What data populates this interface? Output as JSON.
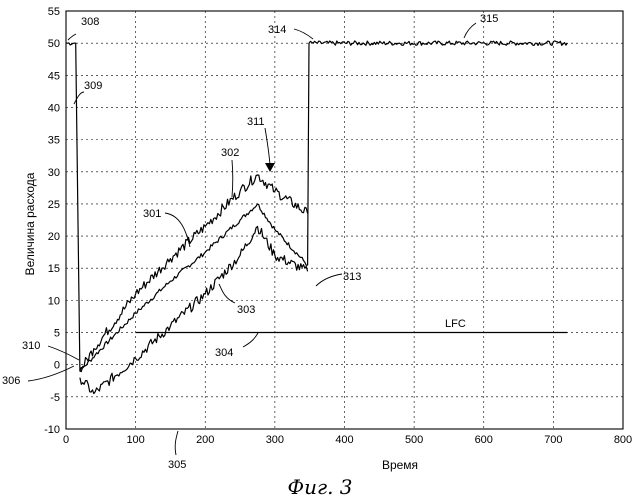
{
  "chart_data": {
    "type": "line",
    "title": "",
    "xlabel": "Время",
    "ylabel": "Величина расхода",
    "caption": "Фиг. 3",
    "xlim": [
      0,
      800
    ],
    "ylim": [
      -10,
      55
    ],
    "x_ticks": [
      0,
      100,
      200,
      300,
      400,
      500,
      600,
      700,
      800
    ],
    "y_ticks": [
      -10,
      -5,
      0,
      5,
      10,
      15,
      20,
      25,
      30,
      35,
      40,
      45,
      50,
      55
    ],
    "grid": true,
    "series": [
      {
        "id": "main",
        "points": [
          [
            0,
            50
          ],
          [
            14,
            50
          ],
          [
            20,
            -1
          ],
          [
            42,
            1.5
          ],
          [
            100,
            8
          ],
          [
            150,
            13
          ],
          [
            200,
            17.5
          ],
          [
            250,
            22.5
          ],
          [
            275,
            25
          ],
          [
            300,
            21
          ],
          [
            347,
            15.5
          ],
          [
            349,
            50
          ],
          [
            720,
            50
          ]
        ],
        "noise": 0.35
      },
      {
        "id": "upper",
        "points": [
          [
            20,
            -1
          ],
          [
            40,
            2.5
          ],
          [
            100,
            11
          ],
          [
            150,
            16.5
          ],
          [
            200,
            21.5
          ],
          [
            250,
            27
          ],
          [
            275,
            29.5
          ],
          [
            300,
            27
          ],
          [
            347,
            23.5
          ]
        ],
        "noise": 0.8
      },
      {
        "id": "lower",
        "points": [
          [
            20,
            -2
          ],
          [
            40,
            -4.5
          ],
          [
            100,
            1
          ],
          [
            150,
            6
          ],
          [
            200,
            11
          ],
          [
            250,
            17
          ],
          [
            275,
            21.5
          ],
          [
            300,
            17
          ],
          [
            347,
            14.5
          ]
        ],
        "noise": 0.8
      },
      {
        "id": "lfc",
        "label": "LFC",
        "points": [
          [
            100,
            5
          ],
          [
            345,
            5
          ],
          [
            350,
            5
          ],
          [
            720,
            5
          ]
        ],
        "noise": 0
      }
    ],
    "annotations": [
      {
        "label": "308",
        "at": [
          12,
          50
        ]
      },
      {
        "label": "309",
        "at": [
          18,
          43
        ]
      },
      {
        "label": "310",
        "at": [
          20,
          0.5
        ]
      },
      {
        "label": "306",
        "at": [
          12,
          -1.5
        ]
      },
      {
        "label": "305",
        "at": [
          175,
          -10
        ]
      },
      {
        "label": "304",
        "at": [
          255,
          4.5
        ]
      },
      {
        "label": "303",
        "at": [
          215,
          16
        ]
      },
      {
        "label": "301",
        "at": [
          190,
          19
        ]
      },
      {
        "label": "302",
        "at": [
          238,
          28
        ]
      },
      {
        "label": "311",
        "at": [
          270,
          28.5
        ]
      },
      {
        "label": "313",
        "at": [
          355,
          15
        ]
      },
      {
        "label": "314",
        "at": [
          350,
          50
        ]
      },
      {
        "label": "315",
        "at": [
          530,
          50.5
        ]
      },
      {
        "label": "LFC",
        "at": [
          470,
          5
        ]
      }
    ]
  }
}
